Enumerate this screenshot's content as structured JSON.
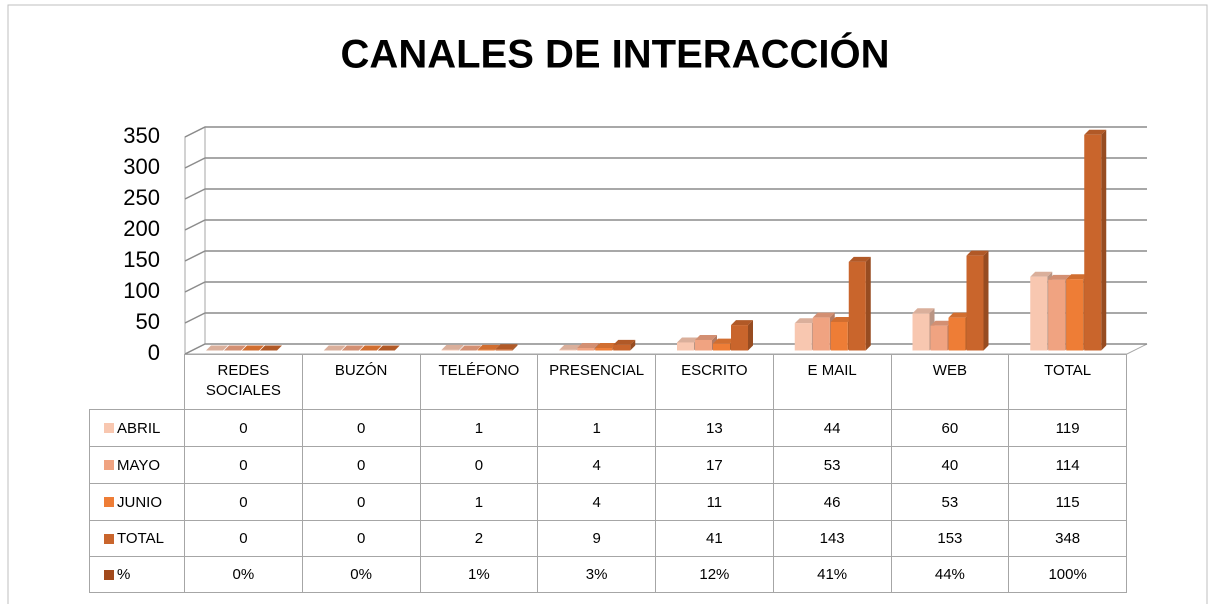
{
  "chart_data": {
    "type": "bar3d",
    "title": "CANALES DE INTERACCIÓN",
    "categories": [
      "REDES SOCIALES",
      "BUZÓN",
      "TELÉFONO",
      "PRESENCIAL",
      "ESCRITO",
      "E MAIL",
      "WEB",
      "TOTAL"
    ],
    "series": [
      {
        "name": "ABRIL",
        "color": "#f8c7b0",
        "values": [
          0,
          0,
          1,
          1,
          13,
          44,
          60,
          119
        ]
      },
      {
        "name": "MAYO",
        "color": "#f0a381",
        "values": [
          0,
          0,
          0,
          4,
          17,
          53,
          40,
          114
        ]
      },
      {
        "name": "JUNIO",
        "color": "#ee7d36",
        "values": [
          0,
          0,
          1,
          4,
          11,
          46,
          53,
          115
        ]
      },
      {
        "name": "TOTAL",
        "color": "#c9652c",
        "values": [
          0,
          0,
          2,
          9,
          41,
          143,
          153,
          348
        ]
      }
    ],
    "table_row": {
      "name": "%",
      "color": "#a24a1c",
      "cells": [
        "0%",
        "0%",
        "1%",
        "3%",
        "12%",
        "41%",
        "44%",
        "100%"
      ]
    },
    "ylim": [
      0,
      350
    ],
    "yticks": [
      0,
      50,
      100,
      150,
      200,
      250,
      300,
      350
    ],
    "grid": true
  }
}
